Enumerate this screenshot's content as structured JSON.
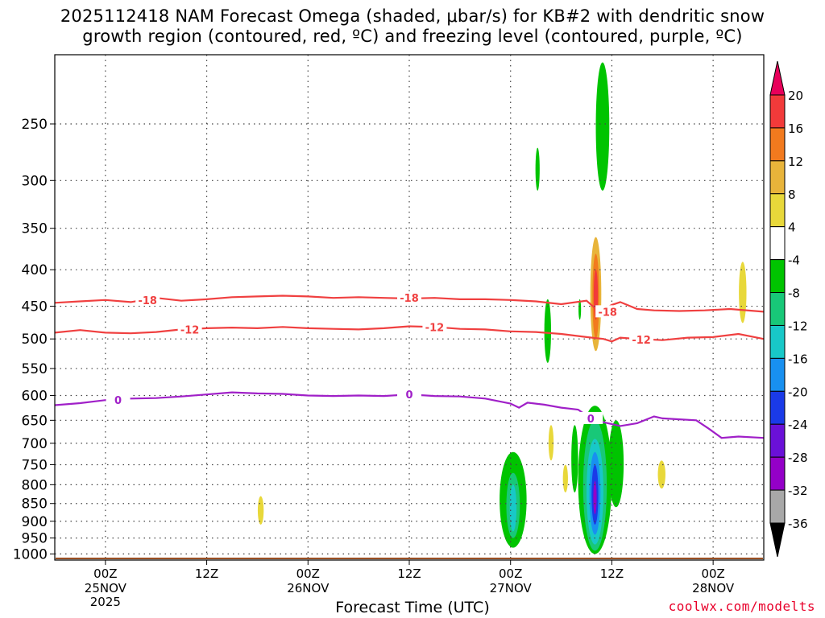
{
  "header": {
    "title_line1": "2025112418 NAM Forecast Omega (shaded, μbar/s) for KB#2 with dendritic snow",
    "title_line2": "growth region (contoured, red, ºC) and freezing level (contoured, purple, ºC)"
  },
  "footer": {
    "credit": "coolwx.com/modelts"
  },
  "chart_data": {
    "type": "heatmap",
    "title": "2025112418 NAM Forecast Omega (shaded, μbar/s) for KB#2 with dendritic snow growth region (contoured, red, ºC) and freezing level (contoured, purple, ºC)",
    "xlabel": "Forecast Time (UTC)",
    "ylabel": "",
    "x_range_hours": [
      -6,
      78
    ],
    "y_range_hpa": [
      200,
      1020
    ],
    "y_scale": "log",
    "y_ticks": [
      250,
      300,
      350,
      400,
      450,
      500,
      550,
      600,
      650,
      700,
      750,
      800,
      850,
      900,
      950,
      1000
    ],
    "x_ticks": [
      {
        "hour": 0,
        "label": "00Z",
        "sub1": "25NOV",
        "sub2": "2025"
      },
      {
        "hour": 12,
        "label": "12Z",
        "sub1": "",
        "sub2": ""
      },
      {
        "hour": 24,
        "label": "00Z",
        "sub1": "26NOV",
        "sub2": ""
      },
      {
        "hour": 36,
        "label": "12Z",
        "sub1": "",
        "sub2": ""
      },
      {
        "hour": 48,
        "label": "00Z",
        "sub1": "27NOV",
        "sub2": ""
      },
      {
        "hour": 60,
        "label": "12Z",
        "sub1": "",
        "sub2": ""
      },
      {
        "hour": 72,
        "label": "00Z",
        "sub1": "28NOV",
        "sub2": ""
      }
    ],
    "grid": true,
    "colorbar": {
      "labels": [
        "20",
        "16",
        "12",
        "8",
        "4",
        "-4",
        "-8",
        "-12",
        "-16",
        "-20",
        "-24",
        "-28",
        "-32",
        "-36"
      ],
      "colors": [
        "#e8005a",
        "#f23a3a",
        "#f27a1e",
        "#e8b43a",
        "#e8d83a",
        "#ffffff",
        "#00c400",
        "#18c878",
        "#18c8c8",
        "#1890f0",
        "#1a3ae8",
        "#6a10d8",
        "#9400c8",
        "#a8a8a8",
        "#000000"
      ]
    },
    "contours": [
      {
        "label": "-18",
        "color": "#f04040",
        "points": [
          [
            -6,
            445
          ],
          [
            -3,
            443
          ],
          [
            0,
            441
          ],
          [
            3,
            444
          ],
          [
            6,
            438
          ],
          [
            9,
            442
          ],
          [
            12,
            440
          ],
          [
            15,
            437
          ],
          [
            18,
            436
          ],
          [
            21,
            435
          ],
          [
            24,
            436
          ],
          [
            27,
            438
          ],
          [
            30,
            437
          ],
          [
            33,
            438
          ],
          [
            36,
            439
          ],
          [
            39,
            438
          ],
          [
            42,
            440
          ],
          [
            45,
            440
          ],
          [
            48,
            441
          ],
          [
            51,
            443
          ],
          [
            54,
            447
          ],
          [
            57,
            442
          ],
          [
            58.5,
            458
          ],
          [
            60,
            448
          ],
          [
            61,
            444
          ],
          [
            63,
            454
          ],
          [
            65,
            456
          ],
          [
            68,
            457
          ],
          [
            71,
            456
          ],
          [
            74,
            454
          ],
          [
            78,
            458
          ]
        ],
        "label_at": [
          [
            5,
            441
          ],
          [
            36,
            438
          ],
          [
            59.5,
            458
          ]
        ]
      },
      {
        "label": "-12",
        "color": "#f04040",
        "points": [
          [
            -6,
            490
          ],
          [
            -3,
            486
          ],
          [
            0,
            490
          ],
          [
            3,
            491
          ],
          [
            6,
            489
          ],
          [
            9,
            485
          ],
          [
            12,
            483
          ],
          [
            15,
            482
          ],
          [
            18,
            483
          ],
          [
            21,
            481
          ],
          [
            24,
            483
          ],
          [
            27,
            484
          ],
          [
            30,
            485
          ],
          [
            33,
            483
          ],
          [
            36,
            480
          ],
          [
            39,
            481
          ],
          [
            42,
            484
          ],
          [
            45,
            485
          ],
          [
            48,
            488
          ],
          [
            51,
            489
          ],
          [
            54,
            492
          ],
          [
            57,
            497
          ],
          [
            59,
            500
          ],
          [
            60,
            504
          ],
          [
            61,
            498
          ],
          [
            63,
            500
          ],
          [
            66,
            502
          ],
          [
            69,
            498
          ],
          [
            72,
            497
          ],
          [
            75,
            492
          ],
          [
            78,
            500
          ]
        ],
        "label_at": [
          [
            10,
            485
          ],
          [
            39,
            481
          ],
          [
            63.5,
            501
          ]
        ]
      },
      {
        "label": "0",
        "color": "#a020c8",
        "points": [
          [
            -6,
            619
          ],
          [
            -3,
            615
          ],
          [
            0,
            609
          ],
          [
            3,
            606
          ],
          [
            6,
            605
          ],
          [
            9,
            602
          ],
          [
            12,
            598
          ],
          [
            15,
            594
          ],
          [
            18,
            596
          ],
          [
            21,
            597
          ],
          [
            24,
            600
          ],
          [
            27,
            601
          ],
          [
            30,
            600
          ],
          [
            33,
            601
          ],
          [
            36,
            598
          ],
          [
            39,
            601
          ],
          [
            42,
            602
          ],
          [
            45,
            606
          ],
          [
            48,
            616
          ],
          [
            49,
            624
          ],
          [
            50,
            614
          ],
          [
            52,
            618
          ],
          [
            54,
            624
          ],
          [
            56,
            628
          ],
          [
            57,
            640
          ],
          [
            59,
            654
          ],
          [
            61,
            662
          ],
          [
            63,
            656
          ],
          [
            65,
            642
          ],
          [
            66,
            646
          ],
          [
            68,
            648
          ],
          [
            70,
            650
          ],
          [
            71.5,
            668
          ],
          [
            73,
            688
          ],
          [
            75,
            685
          ],
          [
            78,
            688
          ]
        ],
        "label_at": [
          [
            1.5,
            609
          ],
          [
            36,
            598
          ],
          [
            57.5,
            646
          ]
        ]
      }
    ],
    "shaded_regions": [
      {
        "category": "-8",
        "center_hour": 58.9,
        "p_top": 205,
        "p_bottom": 310,
        "width_hours": 1.6
      },
      {
        "category": "-8",
        "center_hour": 51.2,
        "p_top": 270,
        "p_bottom": 310,
        "width_hours": 0.5
      },
      {
        "category": "-8",
        "center_hour": 52.4,
        "p_top": 440,
        "p_bottom": 540,
        "width_hours": 0.8
      },
      {
        "category": "-8",
        "center_hour": 56.2,
        "p_top": 440,
        "p_bottom": 470,
        "width_hours": 0.3
      },
      {
        "category": "8",
        "center_hour": 58.1,
        "p_top": 360,
        "p_bottom": 520,
        "width_hours": 1.3
      },
      {
        "category": "12",
        "center_hour": 58.1,
        "p_top": 380,
        "p_bottom": 500,
        "width_hours": 0.8
      },
      {
        "category": "16",
        "center_hour": 58.1,
        "p_top": 400,
        "p_bottom": 470,
        "width_hours": 0.5
      },
      {
        "category": "4",
        "center_hour": 75.5,
        "p_top": 390,
        "p_bottom": 475,
        "width_hours": 0.9
      },
      {
        "category": "4",
        "center_hour": 52.8,
        "p_top": 660,
        "p_bottom": 740,
        "width_hours": 0.6
      },
      {
        "category": "4",
        "center_hour": 54.5,
        "p_top": 750,
        "p_bottom": 820,
        "width_hours": 0.6
      },
      {
        "category": "4",
        "center_hour": 65.9,
        "p_top": 740,
        "p_bottom": 810,
        "width_hours": 0.9
      },
      {
        "category": "4",
        "center_hour": 18.4,
        "p_top": 830,
        "p_bottom": 910,
        "width_hours": 0.7
      },
      {
        "category": "-8",
        "center_hour": 48.3,
        "p_top": 720,
        "p_bottom": 980,
        "width_hours": 3.2
      },
      {
        "category": "-12",
        "center_hour": 48.3,
        "p_top": 770,
        "p_bottom": 950,
        "width_hours": 1.6
      },
      {
        "category": "-16",
        "center_hour": 48.3,
        "p_top": 800,
        "p_bottom": 930,
        "width_hours": 0.8
      },
      {
        "category": "-8",
        "center_hour": 58.0,
        "p_top": 620,
        "p_bottom": 1000,
        "width_hours": 4.0
      },
      {
        "category": "-12",
        "center_hour": 58.0,
        "p_top": 650,
        "p_bottom": 990,
        "width_hours": 2.8
      },
      {
        "category": "-16",
        "center_hour": 58.0,
        "p_top": 690,
        "p_bottom": 970,
        "width_hours": 2.0
      },
      {
        "category": "-20",
        "center_hour": 58.0,
        "p_top": 720,
        "p_bottom": 940,
        "width_hours": 1.3
      },
      {
        "category": "-24",
        "center_hour": 58.0,
        "p_top": 750,
        "p_bottom": 910,
        "width_hours": 0.8
      },
      {
        "category": "-32",
        "center_hour": 58.0,
        "p_top": 790,
        "p_bottom": 880,
        "width_hours": 0.4
      },
      {
        "category": "-8",
        "center_hour": 60.5,
        "p_top": 650,
        "p_bottom": 860,
        "width_hours": 1.8
      },
      {
        "category": "-8",
        "center_hour": 55.6,
        "p_top": 660,
        "p_bottom": 820,
        "width_hours": 0.8
      }
    ],
    "ground_top_hpa": 1012
  }
}
